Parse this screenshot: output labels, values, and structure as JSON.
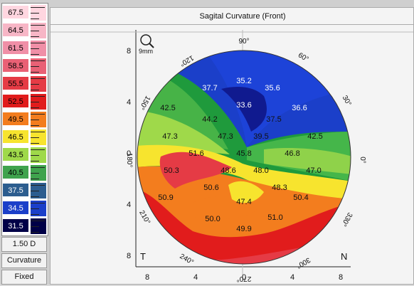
{
  "title": "Sagital Curvature (Front)",
  "scale": {
    "labels": [
      "67.5",
      "64.5",
      "61.5",
      "58.5",
      "55.5",
      "52.5",
      "49.5",
      "46.5",
      "43.5",
      "40.5",
      "37.5",
      "34.5",
      "31.5"
    ],
    "colors": [
      "#ffd6e0",
      "#f7b6c6",
      "#f08fa7",
      "#e96175",
      "#e53b45",
      "#e11c1c",
      "#f37d1e",
      "#f7e42e",
      "#9fd94a",
      "#3fa34d",
      "#2c5d8f",
      "#1b3fc9",
      "#000047"
    ],
    "step": "1.50 D",
    "mode": "Curvature",
    "type": "Fixed"
  },
  "map": {
    "zoom_label": "9mm",
    "angles": [
      "90°",
      "60°",
      "30°",
      "0°",
      "330°",
      "300°",
      "270°",
      "240°",
      "210°",
      "180°",
      "150°",
      "120°"
    ],
    "axis_labels": [
      "8",
      "4",
      "0",
      "4",
      "8"
    ],
    "corner_left": "T",
    "corner_right": "N",
    "values": [
      "35.2",
      "35.6",
      "37.7",
      "33.6",
      "36.6",
      "42.5",
      "44.2",
      "37.5",
      "47.3",
      "47.3",
      "39.5",
      "42.5",
      "51.6",
      "45.8",
      "46.8",
      "50.3",
      "48.6",
      "48.0",
      "47.0",
      "50.6",
      "48.3",
      "50.9",
      "47.4",
      "50.4",
      "50.0",
      "51.0",
      "49.9"
    ]
  }
}
